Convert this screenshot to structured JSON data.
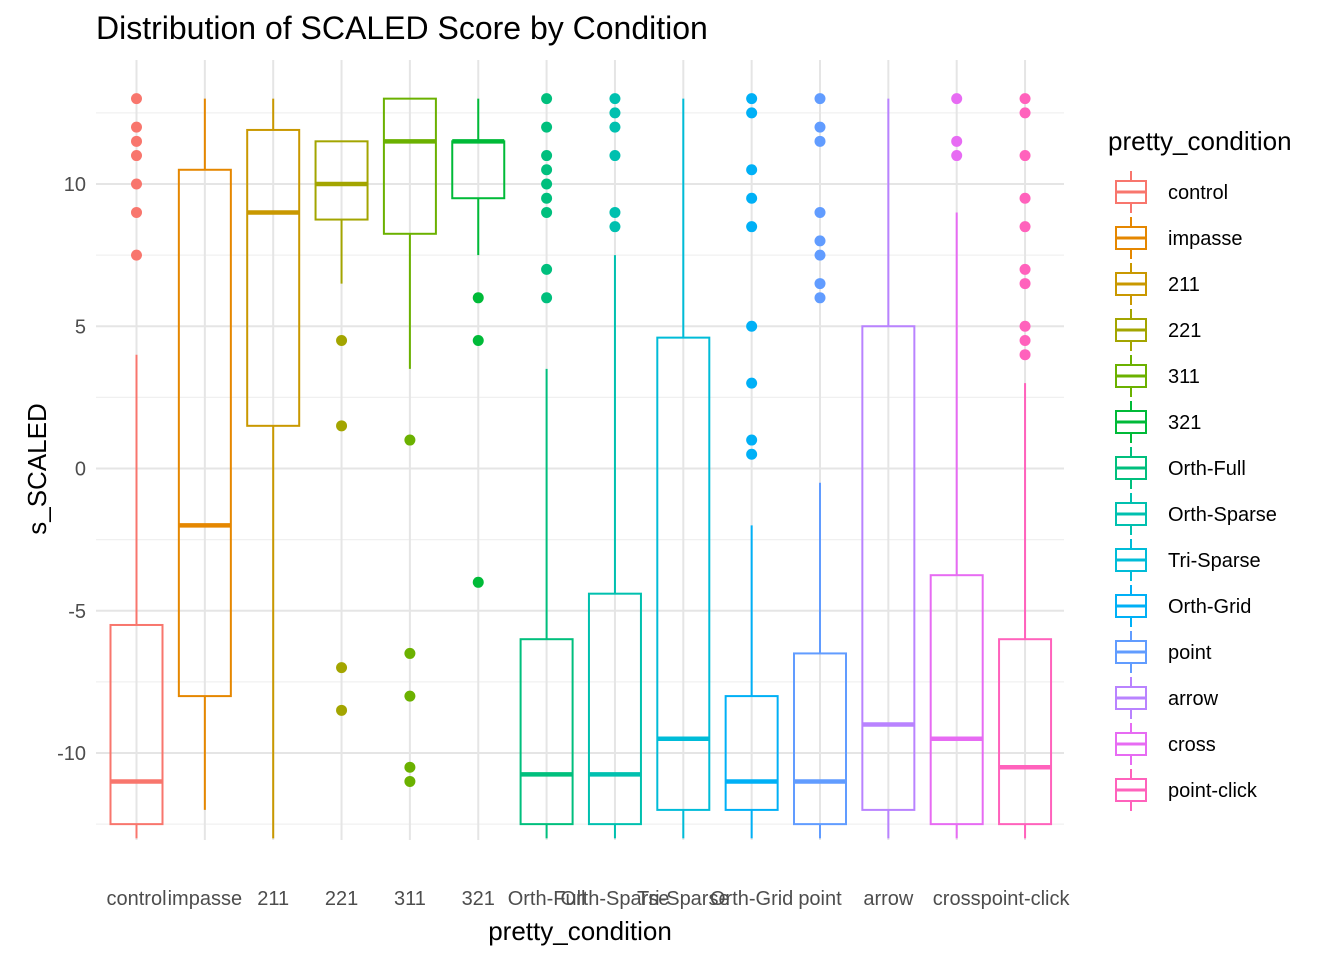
{
  "chart_data": {
    "type": "boxplot",
    "title": "Distribution of SCALED Score by Condition",
    "xlabel": "pretty_condition",
    "ylabel": "s_SCALED",
    "ylim": [
      -13,
      13
    ],
    "yticks": [
      10,
      5,
      0,
      -5,
      -10
    ],
    "ytick_labels": [
      "10",
      "5",
      "0",
      "-5",
      "-10"
    ],
    "grid": true,
    "legend": {
      "title": "pretty_condition",
      "position": "right"
    },
    "categories": [
      "control",
      "impasse",
      "211",
      "221",
      "311",
      "321",
      "Orth-Full",
      "Orth-Sparse",
      "Tri-Sparse",
      "Orth-Grid",
      "point",
      "arrow",
      "cross",
      "point-click"
    ],
    "boxes": [
      {
        "name": "control",
        "color": "#F8766D",
        "whisker_low": -13,
        "q1": -12.5,
        "median": -11,
        "q3": -5.5,
        "whisker_high": 4,
        "outliers": [
          13,
          12,
          11.5,
          11,
          10,
          9,
          7.5
        ]
      },
      {
        "name": "impasse",
        "color": "#E58700",
        "whisker_low": -12,
        "q1": -8,
        "median": -2,
        "q3": 10.5,
        "whisker_high": 13,
        "outliers": []
      },
      {
        "name": "211",
        "color": "#C99800",
        "whisker_low": -13,
        "q1": 1.5,
        "median": 9,
        "q3": 11.9,
        "whisker_high": 13,
        "outliers": []
      },
      {
        "name": "221",
        "color": "#A3A500",
        "whisker_low": 6.5,
        "q1": 8.75,
        "median": 10,
        "q3": 11.5,
        "whisker_high": 11.5,
        "outliers": [
          4.5,
          1.5,
          -7,
          -8.5
        ]
      },
      {
        "name": "311",
        "color": "#6BB100",
        "whisker_low": 3.5,
        "q1": 8.25,
        "median": 11.5,
        "q3": 13,
        "whisker_high": 13,
        "outliers": [
          1,
          -6.5,
          -8,
          -10.5,
          -11
        ]
      },
      {
        "name": "321",
        "color": "#00BA38",
        "whisker_low": 7.5,
        "q1": 9.5,
        "median": 11.5,
        "q3": 11.5,
        "whisker_high": 13,
        "outliers": [
          6,
          4.5,
          -4
        ]
      },
      {
        "name": "Orth-Full",
        "color": "#00BF7D",
        "whisker_low": -13,
        "q1": -12.5,
        "median": -10.75,
        "q3": -6,
        "whisker_high": 3.5,
        "outliers": [
          13,
          12,
          11,
          10.5,
          10,
          9.5,
          9,
          7,
          6
        ]
      },
      {
        "name": "Orth-Sparse",
        "color": "#00C0AF",
        "whisker_low": -13,
        "q1": -12.5,
        "median": -10.75,
        "q3": -4.4,
        "whisker_high": 7.5,
        "outliers": [
          13,
          12.5,
          12,
          11,
          9,
          8.5
        ]
      },
      {
        "name": "Tri-Sparse",
        "color": "#00BCD8",
        "whisker_low": -13,
        "q1": -12,
        "median": -9.5,
        "q3": 4.6,
        "whisker_high": 13,
        "outliers": []
      },
      {
        "name": "Orth-Grid",
        "color": "#00B0F6",
        "whisker_low": -13,
        "q1": -12,
        "median": -11,
        "q3": -8,
        "whisker_high": -2,
        "outliers": [
          13,
          12.5,
          10.5,
          9.5,
          8.5,
          5,
          3,
          1,
          0.5
        ]
      },
      {
        "name": "point",
        "color": "#619CFF",
        "whisker_low": -13,
        "q1": -12.5,
        "median": -11,
        "q3": -6.5,
        "whisker_high": -0.5,
        "outliers": [
          13,
          12,
          11.5,
          9,
          8,
          7.5,
          6.5,
          6
        ]
      },
      {
        "name": "arrow",
        "color": "#B983FF",
        "whisker_low": -13,
        "q1": -12,
        "median": -9,
        "q3": 5,
        "whisker_high": 13,
        "outliers": []
      },
      {
        "name": "cross",
        "color": "#E76BF3",
        "whisker_low": -13,
        "q1": -12.5,
        "median": -9.5,
        "q3": -3.75,
        "whisker_high": 9,
        "outliers": [
          13,
          11.5,
          11
        ]
      },
      {
        "name": "point-click",
        "color": "#FF62BC",
        "whisker_low": -13,
        "q1": -12.5,
        "median": -10.5,
        "q3": -6,
        "whisker_high": 3,
        "outliers": [
          13,
          12.5,
          11,
          9.5,
          8.5,
          7,
          6.5,
          5,
          4.5,
          4
        ]
      }
    ]
  }
}
